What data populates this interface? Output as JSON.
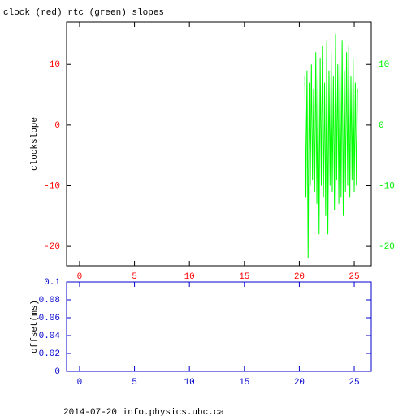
{
  "chart_data": [
    {
      "type": "line",
      "title": "clock (red) rtc (green) slopes",
      "y_label": "clockslope",
      "xlim": [
        -1.18,
        26.55
      ],
      "ylim": [
        -23.2,
        17.0
      ],
      "y2lim": [
        -23.2,
        17.0
      ],
      "xticks": [
        0,
        5,
        10,
        15,
        20,
        25
      ],
      "yticks": [
        -20,
        -10,
        0,
        10
      ],
      "y2ticks": [
        -20,
        -10,
        0,
        10
      ],
      "axis_color": "#000000",
      "x_tick_color": "#ff0000",
      "y_tick_color": "#ff0000",
      "y2_tick_color": "#00ee00",
      "x": [
        20.5,
        20.6,
        20.7,
        20.8,
        20.9,
        21.0,
        21.1,
        21.2,
        21.3,
        21.4,
        21.5,
        21.6,
        21.7,
        21.8,
        21.9,
        22.0,
        22.1,
        22.2,
        22.3,
        22.4,
        22.5,
        22.6,
        22.7,
        22.8,
        22.9,
        23.0,
        23.1,
        23.2,
        23.3,
        23.4,
        23.5,
        23.6,
        23.7,
        23.8,
        23.9,
        24.0,
        24.1,
        24.2,
        24.3,
        24.4,
        24.5,
        24.6,
        24.7,
        24.8,
        24.9,
        25.0,
        25.1,
        25.2,
        25.3
      ],
      "series": [
        {
          "name": "rtc",
          "color": "#00ff00",
          "axis": "y2",
          "values": [
            8,
            -12,
            9,
            -22,
            7,
            -10,
            10,
            -9,
            6,
            -11,
            12,
            -13,
            8,
            -18,
            11,
            -10,
            13,
            -12,
            7,
            -15,
            14,
            -18,
            9,
            -10,
            12,
            -11,
            8,
            -14,
            15,
            -9,
            10,
            -13,
            11,
            -12,
            14,
            -15,
            9,
            -11,
            12,
            -10,
            13,
            -12,
            8,
            -9,
            11,
            -11,
            7,
            -10,
            6
          ]
        }
      ]
    },
    {
      "type": "line",
      "y_label": "offset(ms)",
      "xlim": [
        -1.18,
        26.55
      ],
      "ylim": [
        0,
        0.1
      ],
      "xticks": [
        0,
        5,
        10,
        15,
        20,
        25
      ],
      "yticks": [
        0,
        0.02,
        0.04,
        0.06,
        0.08,
        0.1
      ],
      "axis_color": "#0000cc",
      "x_tick_color": "#0000cc",
      "y_tick_color": "#0000cc",
      "x": [],
      "series": []
    }
  ],
  "footer": "2014-07-20 info.physics.ubc.ca"
}
